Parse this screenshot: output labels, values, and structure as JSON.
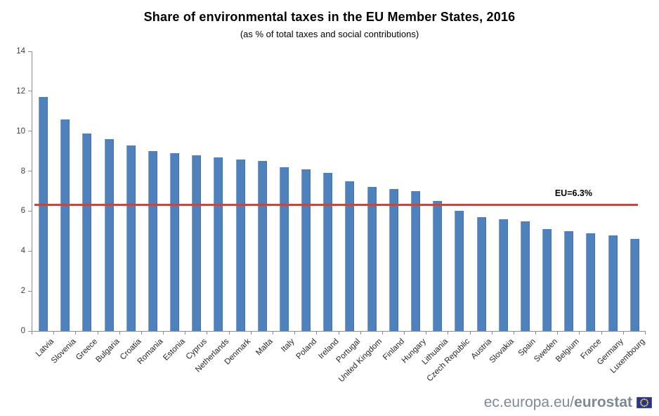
{
  "title": "Share of environmental taxes in the EU Member States, 2016",
  "subtitle": "(as % of total taxes and social contributions)",
  "footer": {
    "url_regular": "ec.europa.eu/",
    "url_bold": "eurostat",
    "flag_icon": "eu-flag-icon",
    "flag_colors": {
      "field": "#26348b",
      "stars": "#f8d12e"
    }
  },
  "chart_data": {
    "type": "bar",
    "title": "Share of environmental taxes in the EU Member States, 2016",
    "subtitle": "(as % of total taxes and social contributions)",
    "categories": [
      "Latvia",
      "Slovenia",
      "Greece",
      "Bulgaria",
      "Croatia",
      "Romania",
      "Estonia",
      "Cyprus",
      "Netherlands",
      "Denmark",
      "Malta",
      "Italy",
      "Poland",
      "Ireland",
      "Portugal",
      "United Kingdom",
      "Finland",
      "Hungary",
      "Lithuania",
      "Czech Republic",
      "Austria",
      "Slovakia",
      "Spain",
      "Sweden",
      "Belgium",
      "France",
      "Germany",
      "Luxembourg"
    ],
    "values": [
      11.7,
      10.6,
      9.9,
      9.6,
      9.3,
      9.0,
      8.9,
      8.8,
      8.7,
      8.6,
      8.5,
      8.2,
      8.1,
      7.9,
      7.5,
      7.2,
      7.1,
      7.0,
      6.5,
      6.0,
      5.7,
      5.6,
      5.5,
      5.1,
      5.0,
      4.9,
      4.8,
      4.6
    ],
    "xlabel": "",
    "ylabel": "",
    "ylim": [
      0,
      14
    ],
    "ytick_step": 2,
    "grid": false,
    "legend": "none",
    "bar_color": "#4f81bd",
    "axis_color": "#8c8c8c",
    "reference_line": {
      "label": "EU=6.3%",
      "value": 6.3,
      "color": "#b94b48"
    }
  }
}
